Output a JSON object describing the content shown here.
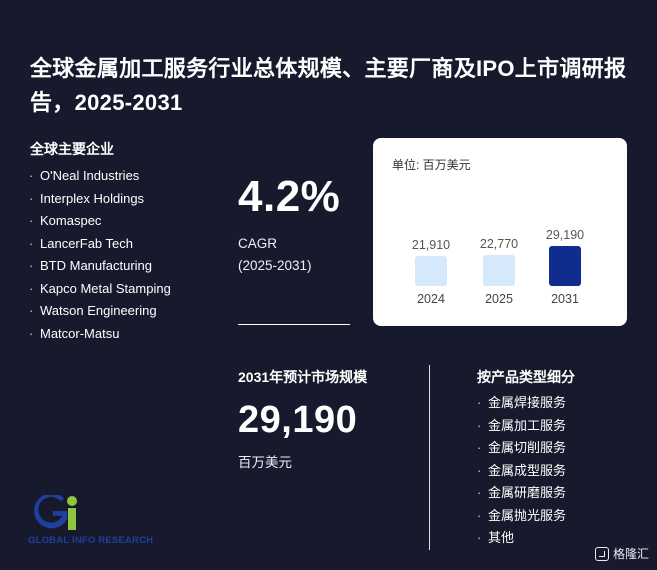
{
  "title": "全球金属加工服务行业总体规模、主要厂商及IPO上市调研报告，2025-2031",
  "companies_heading": "全球主要企业",
  "companies": [
    "O'Neal Industries",
    "Interplex Holdings",
    "Komaspec",
    "LancerFab Tech",
    "BTD Manufacturing",
    "Kapco Metal Stamping",
    "Watson Engineering",
    "Matcor-Matsu"
  ],
  "cagr": {
    "value": "4.2%",
    "label": "CAGR",
    "period": "(2025-2031)"
  },
  "market": {
    "heading": "2031年预计市场规模",
    "value": "29,190",
    "unit": "百万美元"
  },
  "segments_heading": "按产品类型细分",
  "segments": [
    "金属焊接服务",
    "金属加工服务",
    "金属切削服务",
    "金属成型服务",
    "金属研磨服务",
    "金属抛光服务",
    "其他"
  ],
  "logo_text": "GLOBAL INFO RESEARCH",
  "brand_text": "格隆汇",
  "chart_data": {
    "type": "bar",
    "unit_label": "单位: 百万美元",
    "categories": [
      "2024",
      "2025",
      "2031"
    ],
    "values": [
      21910,
      22770,
      29190
    ],
    "value_labels": [
      "21,910",
      "22,770",
      "29,190"
    ],
    "colors": [
      "#d6e8fb",
      "#d6e8fb",
      "#0f2d8e"
    ],
    "title": "",
    "xlabel": "",
    "ylabel": "",
    "grid": false
  }
}
